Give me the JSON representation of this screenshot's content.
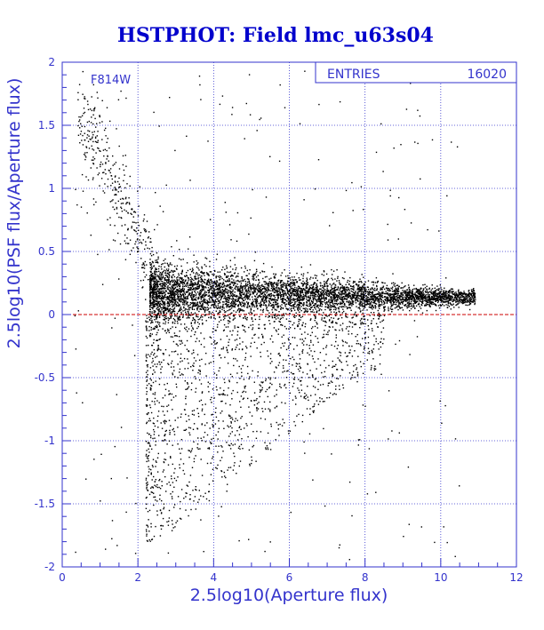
{
  "chart_data": {
    "type": "scatter",
    "title": "HSTPHOT: Field lmc_u63s04",
    "xlabel": "2.5log10(Aperture flux)",
    "ylabel": "2.5log10(PSF flux/Aperture flux)",
    "xlim": [
      0,
      12
    ],
    "ylim": [
      -2,
      2
    ],
    "x_ticks": [
      0,
      2,
      4,
      6,
      8,
      10,
      12
    ],
    "y_ticks": [
      -2,
      -1.5,
      -1,
      -0.5,
      0,
      0.5,
      1,
      1.5,
      2
    ],
    "x_tick_labels": [
      "0",
      "2",
      "4",
      "6",
      "8",
      "10",
      "12"
    ],
    "y_tick_labels": [
      "-2",
      "-1.5",
      "-1",
      "-0.5",
      "0",
      "0.5",
      "1",
      "1.5",
      "2"
    ],
    "grid": true,
    "filter_label": "F814W",
    "stats_box": {
      "label": "ENTRIES",
      "value": "16020"
    },
    "reference_line": {
      "y": 0,
      "color": "#cc0000"
    },
    "entries": 16020,
    "distribution": {
      "ridge": [
        {
          "x": 2.4,
          "y": 0.18
        },
        {
          "x": 3.0,
          "y": 0.17
        },
        {
          "x": 4.0,
          "y": 0.17
        },
        {
          "x": 5.0,
          "y": 0.16
        },
        {
          "x": 6.0,
          "y": 0.16
        },
        {
          "x": 7.0,
          "y": 0.15
        },
        {
          "x": 8.0,
          "y": 0.15
        },
        {
          "x": 9.0,
          "y": 0.14
        },
        {
          "x": 10.0,
          "y": 0.14
        },
        {
          "x": 10.8,
          "y": 0.14
        }
      ],
      "bright_tail": [
        {
          "x": 0.5,
          "y": 1.5
        },
        {
          "x": 1.0,
          "y": 1.3
        },
        {
          "x": 1.5,
          "y": 0.9
        },
        {
          "x": 2.0,
          "y": 0.6
        },
        {
          "x": 2.4,
          "y": 0.35
        }
      ],
      "faint_plume_extent": {
        "x": [
          2.2,
          8.5
        ],
        "y": [
          -2,
          0
        ]
      }
    },
    "colors": {
      "frame": "#3333cc",
      "axis_text": "#3333cc",
      "title": "#0000cc",
      "points": "#000000",
      "reference_line": "#cc0000"
    }
  }
}
